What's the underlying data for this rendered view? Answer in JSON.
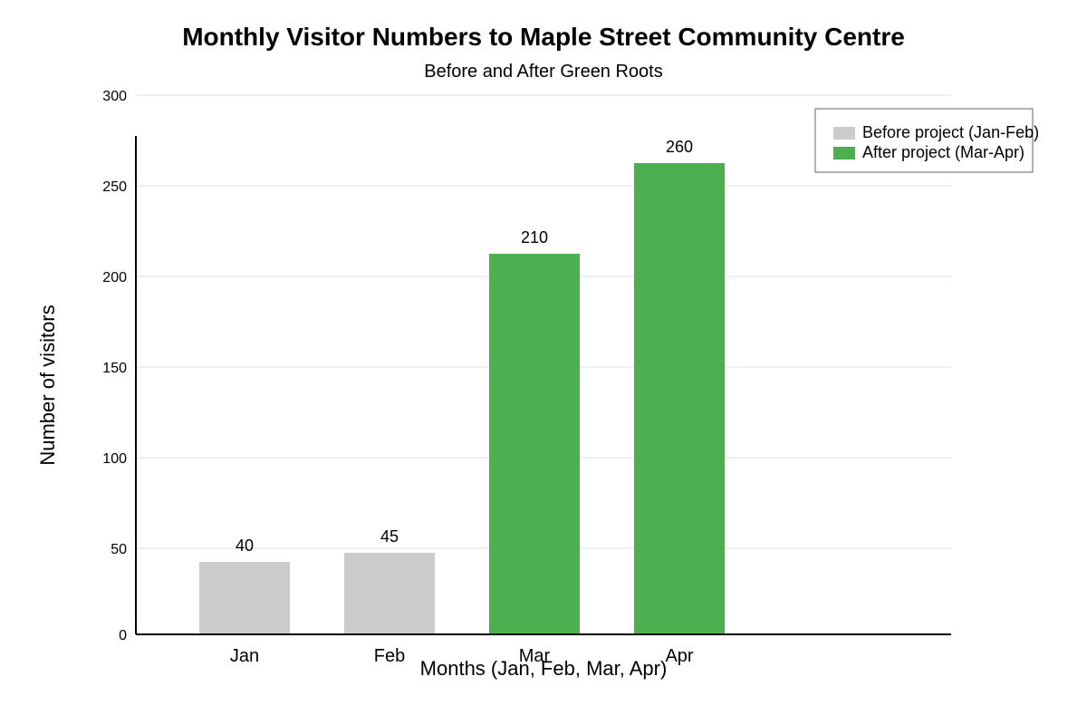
{
  "chart_data": {
    "type": "bar",
    "title": "Monthly Visitor Numbers to Maple Street Community Centre",
    "subtitle": "Before and After Green Roots",
    "xlabel": "Months (Jan, Feb, Mar, Apr)",
    "ylabel": "Number of visitors",
    "categories": [
      "Jan",
      "Feb",
      "Mar",
      "Apr"
    ],
    "values": [
      40,
      45,
      210,
      260
    ],
    "value_labels": [
      "40",
      "45",
      "210",
      "260"
    ],
    "yticks": [
      0,
      50,
      100,
      150,
      200,
      250,
      300
    ],
    "ytick_labels": [
      "0",
      "50",
      "100",
      "150",
      "200",
      "250",
      "300"
    ],
    "ylim": [
      0,
      300
    ],
    "grid": true,
    "legend_position": "top-right",
    "series": [
      {
        "name": "Before project (Jan-Feb)",
        "color": "#cccccc",
        "categories": [
          "Jan",
          "Feb"
        ]
      },
      {
        "name": "After project (Mar-Apr)",
        "color": "#4caf50",
        "categories": [
          "Mar",
          "Apr"
        ]
      }
    ],
    "bar_colors": [
      "#cccccc",
      "#cccccc",
      "#4caf50",
      "#4caf50"
    ]
  }
}
